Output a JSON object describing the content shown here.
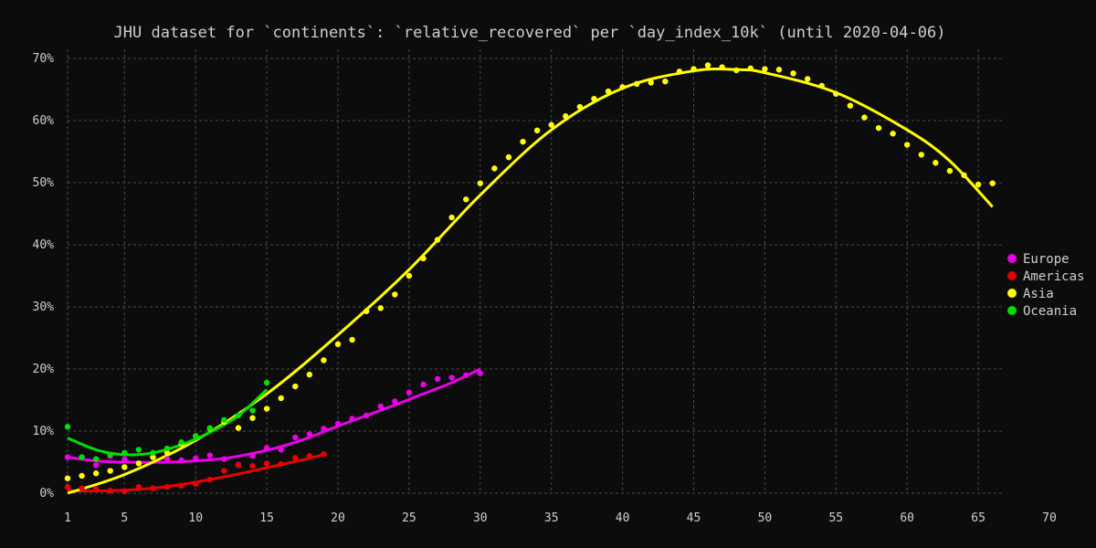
{
  "chart_data": {
    "type": "scatter",
    "title": "JHU dataset for `continents`: `relative_recovered` per `day_index_10k` (until 2020-04-06)",
    "xlabel": "",
    "ylabel": "",
    "xlim": [
      1,
      70
    ],
    "ylim": [
      0,
      0.7
    ],
    "x_ticks": [
      1,
      5,
      10,
      15,
      20,
      25,
      30,
      35,
      40,
      45,
      50,
      55,
      60,
      65,
      70
    ],
    "x_tick_labels": [
      "1",
      "5",
      "10",
      "15",
      "20",
      "25",
      "30",
      "35",
      "40",
      "45",
      "50",
      "55",
      "60",
      "65",
      "70"
    ],
    "y_ticks": [
      0,
      0.1,
      0.2,
      0.3,
      0.4,
      0.5,
      0.6,
      0.7
    ],
    "y_tick_labels": [
      "0%",
      "10%",
      "20%",
      "30%",
      "40%",
      "50%",
      "60%",
      "70%"
    ],
    "grid": true,
    "legend_position": "right",
    "series": [
      {
        "name": "Europe",
        "color": "#e800e8",
        "points": [
          [
            1,
            0.058
          ],
          [
            2,
            0.057
          ],
          [
            3,
            0.045
          ],
          [
            4,
            0.06
          ],
          [
            5,
            0.055
          ],
          [
            6,
            0.048
          ],
          [
            7,
            0.058
          ],
          [
            8,
            0.055
          ],
          [
            9,
            0.053
          ],
          [
            10,
            0.056
          ],
          [
            11,
            0.061
          ],
          [
            12,
            0.055
          ],
          [
            13,
            0.046
          ],
          [
            14,
            0.06
          ],
          [
            15,
            0.073
          ],
          [
            16,
            0.07
          ],
          [
            17,
            0.09
          ],
          [
            18,
            0.095
          ],
          [
            19,
            0.104
          ],
          [
            20,
            0.112
          ],
          [
            21,
            0.12
          ],
          [
            22,
            0.125
          ],
          [
            23,
            0.14
          ],
          [
            24,
            0.148
          ],
          [
            25,
            0.162
          ],
          [
            26,
            0.175
          ],
          [
            27,
            0.184
          ],
          [
            28,
            0.186
          ],
          [
            29,
            0.19
          ],
          [
            30,
            0.193
          ]
        ],
        "fit": [
          [
            1,
            0.058
          ],
          [
            3,
            0.052
          ],
          [
            5,
            0.05
          ],
          [
            8,
            0.05
          ],
          [
            10,
            0.052
          ],
          [
            12,
            0.056
          ],
          [
            14,
            0.064
          ],
          [
            16,
            0.075
          ],
          [
            18,
            0.09
          ],
          [
            20,
            0.108
          ],
          [
            22,
            0.125
          ],
          [
            24,
            0.142
          ],
          [
            26,
            0.16
          ],
          [
            28,
            0.178
          ],
          [
            30,
            0.2
          ]
        ]
      },
      {
        "name": "Americas",
        "color": "#e80000",
        "points": [
          [
            1,
            0.01
          ],
          [
            2,
            0.008
          ],
          [
            3,
            0.007
          ],
          [
            4,
            0.004
          ],
          [
            5,
            0.003
          ],
          [
            6,
            0.01
          ],
          [
            7,
            0.008
          ],
          [
            8,
            0.01
          ],
          [
            9,
            0.012
          ],
          [
            10,
            0.015
          ],
          [
            11,
            0.022
          ],
          [
            12,
            0.036
          ],
          [
            13,
            0.045
          ],
          [
            14,
            0.044
          ],
          [
            15,
            0.048
          ],
          [
            16,
            0.047
          ],
          [
            17,
            0.057
          ],
          [
            18,
            0.06
          ],
          [
            19,
            0.063
          ]
        ],
        "fit": [
          [
            1,
            0.004
          ],
          [
            4,
            0.004
          ],
          [
            7,
            0.008
          ],
          [
            9,
            0.014
          ],
          [
            11,
            0.022
          ],
          [
            13,
            0.031
          ],
          [
            15,
            0.041
          ],
          [
            17,
            0.051
          ],
          [
            19,
            0.062
          ]
        ]
      },
      {
        "name": "Asia",
        "color": "#ffff00",
        "points": [
          [
            1,
            0.024
          ],
          [
            2,
            0.028
          ],
          [
            3,
            0.032
          ],
          [
            4,
            0.036
          ],
          [
            5,
            0.042
          ],
          [
            6,
            0.048
          ],
          [
            7,
            0.058
          ],
          [
            8,
            0.065
          ],
          [
            9,
            0.08
          ],
          [
            10,
            0.092
          ],
          [
            11,
            0.104
          ],
          [
            12,
            0.115
          ],
          [
            13,
            0.105
          ],
          [
            14,
            0.121
          ],
          [
            15,
            0.136
          ],
          [
            16,
            0.153
          ],
          [
            17,
            0.172
          ],
          [
            18,
            0.191
          ],
          [
            19,
            0.214
          ],
          [
            20,
            0.24
          ],
          [
            21,
            0.247
          ],
          [
            22,
            0.293
          ],
          [
            23,
            0.298
          ],
          [
            24,
            0.32
          ],
          [
            25,
            0.35
          ],
          [
            26,
            0.378
          ],
          [
            27,
            0.408
          ],
          [
            28,
            0.444
          ],
          [
            29,
            0.473
          ],
          [
            30,
            0.499
          ],
          [
            31,
            0.523
          ],
          [
            32,
            0.541
          ],
          [
            33,
            0.566
          ],
          [
            34,
            0.584
          ],
          [
            35,
            0.593
          ],
          [
            36,
            0.607
          ],
          [
            37,
            0.622
          ],
          [
            38,
            0.635
          ],
          [
            39,
            0.647
          ],
          [
            40,
            0.654
          ],
          [
            41,
            0.659
          ],
          [
            42,
            0.661
          ],
          [
            43,
            0.663
          ],
          [
            44,
            0.679
          ],
          [
            45,
            0.683
          ],
          [
            46,
            0.689
          ],
          [
            47,
            0.686
          ],
          [
            48,
            0.681
          ],
          [
            49,
            0.684
          ],
          [
            50,
            0.683
          ],
          [
            51,
            0.682
          ],
          [
            52,
            0.676
          ],
          [
            53,
            0.667
          ],
          [
            54,
            0.656
          ],
          [
            55,
            0.643
          ],
          [
            56,
            0.624
          ],
          [
            57,
            0.605
          ],
          [
            58,
            0.588
          ],
          [
            59,
            0.579
          ],
          [
            60,
            0.561
          ],
          [
            61,
            0.545
          ],
          [
            62,
            0.532
          ],
          [
            63,
            0.519
          ],
          [
            64,
            0.512
          ],
          [
            65,
            0.497
          ],
          [
            66,
            0.499
          ]
        ],
        "fit": [
          [
            1,
            0.0
          ],
          [
            5,
            0.03
          ],
          [
            10,
            0.085
          ],
          [
            15,
            0.16
          ],
          [
            20,
            0.255
          ],
          [
            25,
            0.36
          ],
          [
            30,
            0.48
          ],
          [
            35,
            0.585
          ],
          [
            40,
            0.652
          ],
          [
            45,
            0.68
          ],
          [
            48,
            0.682
          ],
          [
            50,
            0.677
          ],
          [
            55,
            0.645
          ],
          [
            60,
            0.585
          ],
          [
            63,
            0.535
          ],
          [
            66,
            0.461
          ]
        ]
      },
      {
        "name": "Oceania",
        "color": "#00dd00",
        "points": [
          [
            1,
            0.107
          ],
          [
            2,
            0.058
          ],
          [
            3,
            0.055
          ],
          [
            4,
            0.062
          ],
          [
            5,
            0.065
          ],
          [
            6,
            0.07
          ],
          [
            7,
            0.065
          ],
          [
            8,
            0.072
          ],
          [
            9,
            0.082
          ],
          [
            10,
            0.092
          ],
          [
            11,
            0.105
          ],
          [
            12,
            0.118
          ],
          [
            13,
            0.125
          ],
          [
            14,
            0.133
          ],
          [
            15,
            0.178
          ]
        ],
        "fit": [
          [
            1,
            0.089
          ],
          [
            3,
            0.07
          ],
          [
            5,
            0.062
          ],
          [
            7,
            0.065
          ],
          [
            9,
            0.078
          ],
          [
            11,
            0.098
          ],
          [
            13,
            0.125
          ],
          [
            15,
            0.167
          ]
        ]
      }
    ]
  }
}
